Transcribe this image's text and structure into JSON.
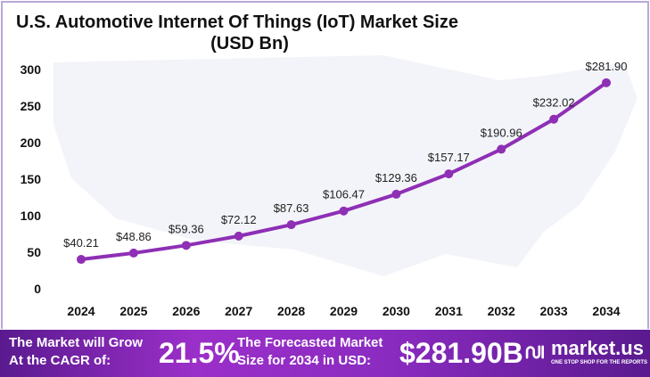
{
  "chart_data": {
    "type": "line",
    "title": "U.S. Automotive Internet Of Things (IoT) Market Size",
    "subtitle": "(USD Bn)",
    "categories": [
      "2024",
      "2025",
      "2026",
      "2027",
      "2028",
      "2029",
      "2030",
      "2031",
      "2032",
      "2033",
      "2034"
    ],
    "values": [
      40.21,
      48.86,
      59.36,
      72.12,
      87.63,
      106.47,
      129.36,
      157.17,
      190.96,
      232.02,
      281.9
    ],
    "data_labels": [
      "$40.21",
      "$48.86",
      "$59.36",
      "$72.12",
      "$87.63",
      "$106.47",
      "$129.36",
      "$157.17",
      "$190.96",
      "$232.02",
      "$281.90"
    ],
    "yticks": [
      "0",
      "50",
      "100",
      "150",
      "200",
      "250",
      "300"
    ],
    "ylim": [
      0,
      300
    ],
    "grid": false,
    "color": "#8e2fb5"
  },
  "footer": {
    "cagr_label_1": "The Market will Grow",
    "cagr_label_2": "At the CAGR of:",
    "cagr_value": "21.5%",
    "forecast_label_1": "The Forecasted Market",
    "forecast_label_2": "Size for 2034 in USD:",
    "forecast_value": "$281.90B",
    "logo_text": "market.us",
    "logo_tagline": "ONE STOP SHOP FOR THE REPORTS"
  }
}
